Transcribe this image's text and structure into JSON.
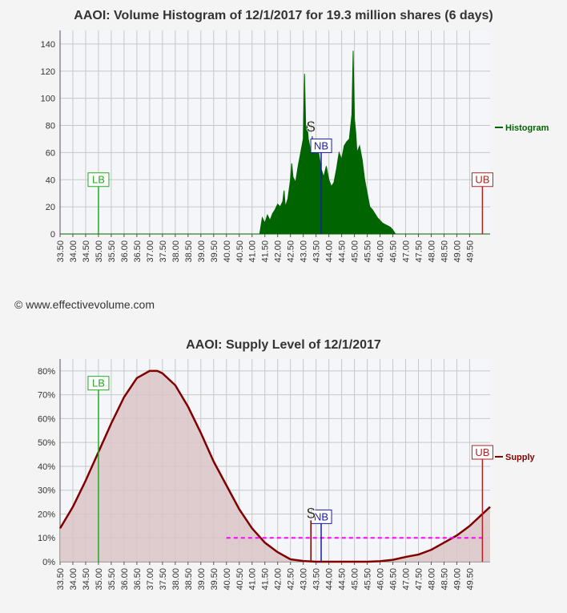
{
  "chart_data": [
    {
      "type": "area",
      "title": "AAOI: Volume Histogram of 12/1/2017 for 19.3 million shares (6 days)",
      "ylim": [
        0,
        150
      ],
      "yticks": [
        0,
        20,
        40,
        60,
        80,
        100,
        120,
        140
      ],
      "xlim": [
        33.5,
        50.3
      ],
      "xticks": [
        "33.50",
        "34.00",
        "34.50",
        "35.00",
        "35.50",
        "36.00",
        "36.50",
        "37.00",
        "37.50",
        "38.00",
        "38.50",
        "39.00",
        "39.50",
        "40.00",
        "40.50",
        "41.00",
        "41.50",
        "42.00",
        "42.50",
        "43.00",
        "43.50",
        "44.00",
        "44.50",
        "45.00",
        "45.50",
        "46.00",
        "46.50",
        "47.00",
        "47.50",
        "48.00",
        "48.50",
        "49.00",
        "49.50"
      ],
      "legend": "Histogram",
      "legend_placement": "right",
      "color": "#006400",
      "series": {
        "x": [
          33.5,
          41.3,
          41.4,
          41.5,
          41.6,
          41.7,
          41.8,
          41.9,
          42.0,
          42.1,
          42.2,
          42.25,
          42.3,
          42.4,
          42.5,
          42.55,
          42.6,
          42.7,
          42.8,
          42.9,
          43.0,
          43.05,
          43.1,
          43.15,
          43.2,
          43.25,
          43.3,
          43.35,
          43.4,
          43.5,
          43.6,
          43.7,
          43.8,
          43.9,
          44.0,
          44.1,
          44.2,
          44.3,
          44.4,
          44.5,
          44.6,
          44.7,
          44.8,
          44.9,
          44.95,
          45.0,
          45.05,
          45.1,
          45.2,
          45.3,
          45.4,
          45.5,
          45.6,
          45.7,
          45.8,
          45.9,
          46.0,
          46.1,
          46.2,
          46.3,
          46.4,
          46.5,
          46.6,
          50.3
        ],
        "y": [
          0,
          0,
          12,
          8,
          14,
          10,
          15,
          18,
          22,
          20,
          24,
          32,
          20,
          26,
          40,
          52,
          42,
          38,
          50,
          60,
          70,
          118,
          75,
          80,
          70,
          65,
          58,
          72,
          62,
          68,
          60,
          48,
          42,
          50,
          40,
          35,
          38,
          48,
          60,
          55,
          65,
          68,
          70,
          88,
          135,
          85,
          75,
          60,
          65,
          55,
          40,
          30,
          20,
          18,
          15,
          12,
          10,
          8,
          7,
          6,
          5,
          3,
          0,
          0
        ]
      },
      "markers": [
        {
          "label": "LB",
          "x": 35.0,
          "y": 35,
          "color": "#22aa22"
        },
        {
          "label": "UB",
          "x": 50.0,
          "y": 35,
          "color": "#b22222"
        },
        {
          "label": "NB",
          "x": 43.7,
          "y": 60,
          "color": "#1a1aaa"
        }
      ],
      "price_icon": {
        "glyph": "$",
        "x": 43.3,
        "y": 75
      }
    },
    {
      "type": "area",
      "title": "AAOI: Supply Level of 12/1/2017",
      "ylim": [
        0,
        0.85
      ],
      "yticks": [
        "0%",
        "10%",
        "20%",
        "30%",
        "40%",
        "50%",
        "60%",
        "70%",
        "80%"
      ],
      "xlim": [
        33.5,
        50.3
      ],
      "xticks": [
        "33.50",
        "34.00",
        "34.50",
        "35.00",
        "35.50",
        "36.00",
        "36.50",
        "37.00",
        "37.50",
        "38.00",
        "38.50",
        "39.00",
        "39.50",
        "40.00",
        "40.50",
        "41.00",
        "41.50",
        "42.00",
        "42.50",
        "43.00",
        "43.50",
        "44.00",
        "44.50",
        "45.00",
        "45.50",
        "46.00",
        "46.50",
        "47.00",
        "47.50",
        "48.00",
        "48.50",
        "49.00",
        "49.50"
      ],
      "legend": "Supply",
      "legend_placement": "right",
      "color": "#800000",
      "fill": "#d9c4c8",
      "series": {
        "x": [
          33.5,
          34.0,
          34.5,
          35.0,
          35.5,
          36.0,
          36.5,
          37.0,
          37.3,
          37.5,
          38.0,
          38.5,
          39.0,
          39.5,
          40.0,
          40.5,
          41.0,
          41.5,
          42.0,
          42.5,
          43.0,
          43.5,
          44.0,
          44.5,
          45.0,
          45.5,
          46.0,
          46.5,
          47.0,
          47.5,
          48.0,
          48.5,
          49.0,
          49.5,
          50.0,
          50.3
        ],
        "y": [
          0.14,
          0.23,
          0.34,
          0.46,
          0.58,
          0.69,
          0.77,
          0.8,
          0.8,
          0.79,
          0.74,
          0.65,
          0.54,
          0.42,
          0.32,
          0.22,
          0.14,
          0.08,
          0.04,
          0.01,
          0.003,
          0.0,
          0.0,
          0.0,
          0.0,
          0.0,
          0.002,
          0.008,
          0.02,
          0.03,
          0.05,
          0.08,
          0.11,
          0.15,
          0.2,
          0.23
        ]
      },
      "threshold": {
        "y": 0.1,
        "x_start": 40.0,
        "x_end": 50.0,
        "color": "#ff00ff"
      },
      "markers": [
        {
          "label": "LB",
          "x": 35.0,
          "y": 0.72,
          "color": "#22aa22"
        },
        {
          "label": "UB",
          "x": 50.0,
          "y": 0.43,
          "color": "#b22222"
        },
        {
          "label": "NB",
          "x": 43.7,
          "y": 0.16,
          "color": "#1a1aaa"
        }
      ],
      "price_icon": {
        "glyph": "$",
        "x": 43.3,
        "y": 0.18
      }
    }
  ],
  "copyright": "© www.effectivevolume.com"
}
